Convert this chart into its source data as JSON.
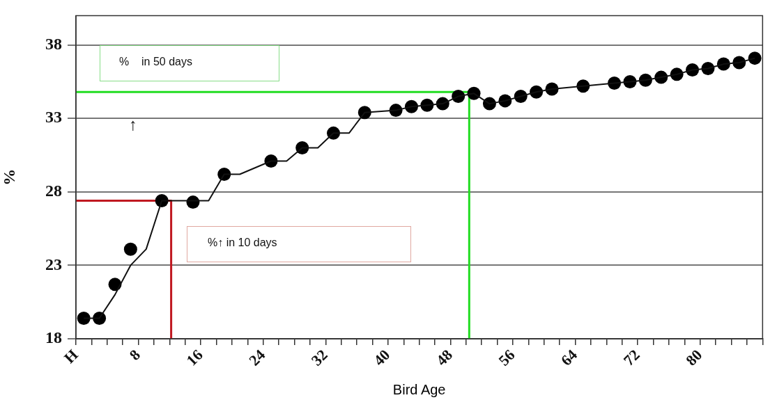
{
  "chart_data": {
    "type": "scatter",
    "xlabel": "Bird Age",
    "ylabel": "%",
    "xlim": [
      0,
      88
    ],
    "xticks": [
      {
        "value": 0,
        "label": "H"
      },
      {
        "value": 2,
        "label": null
      },
      {
        "value": 4,
        "label": null
      },
      {
        "value": 6,
        "label": null
      },
      8,
      {
        "value": 10,
        "label": null
      },
      {
        "value": 12,
        "label": null
      },
      {
        "value": 14,
        "label": null
      },
      16,
      {
        "value": 18,
        "label": null
      },
      {
        "value": 20,
        "label": null
      },
      {
        "value": 22,
        "label": null
      },
      24,
      {
        "value": 26,
        "label": null
      },
      {
        "value": 28,
        "label": null
      },
      {
        "value": 30,
        "label": null
      },
      32,
      {
        "value": 34,
        "label": null
      },
      {
        "value": 36,
        "label": null
      },
      {
        "value": 38,
        "label": null
      },
      40,
      {
        "value": 42,
        "label": null
      },
      {
        "value": 44,
        "label": null
      },
      {
        "value": 46,
        "label": null
      },
      48,
      {
        "value": 50,
        "label": null
      },
      {
        "value": 52,
        "label": null
      },
      {
        "value": 54,
        "label": null
      },
      56,
      {
        "value": 58,
        "label": null
      },
      {
        "value": 60,
        "label": null
      },
      {
        "value": 62,
        "label": null
      },
      64,
      {
        "value": 66,
        "label": null
      },
      {
        "value": 68,
        "label": null
      },
      {
        "value": 70,
        "label": null
      },
      72,
      {
        "value": 74,
        "label": null
      },
      {
        "value": 76,
        "label": null
      },
      {
        "value": 78,
        "label": null
      },
      80,
      {
        "value": 82,
        "label": null
      },
      {
        "value": 84,
        "label": null
      },
      {
        "value": 86,
        "label": null
      },
      {
        "value": 88,
        "label": null
      }
    ],
    "ylim": [
      18,
      40
    ],
    "yticks": [
      18,
      23,
      28,
      33,
      38
    ],
    "grid": "y",
    "legend": false,
    "series": [
      {
        "type": "line",
        "color": "#111111",
        "marker": "none",
        "line_style": "solid",
        "x": [
          1,
          3,
          5,
          7,
          9,
          11,
          17,
          19,
          21,
          25,
          27,
          29,
          31,
          33,
          35,
          37,
          41,
          43,
          45,
          47,
          49,
          51,
          53,
          55,
          57,
          59,
          61,
          65,
          69,
          71,
          73,
          75,
          77,
          79,
          81,
          83,
          85,
          87
        ],
        "values": [
          19.4,
          19.4,
          21.0,
          23.0,
          24.1,
          27.4,
          27.4,
          29.2,
          29.2,
          30.1,
          30.1,
          31.0,
          31.0,
          32.0,
          32.0,
          33.4,
          33.55,
          33.8,
          33.9,
          34.0,
          34.5,
          34.7,
          34.0,
          34.2,
          34.5,
          34.8,
          35.0,
          35.2,
          35.4,
          35.5,
          35.6,
          35.8,
          36.0,
          36.3,
          36.4,
          36.7,
          36.8,
          37.1
        ]
      },
      {
        "color": "#000000",
        "marker": "circle",
        "x": [
          1,
          3,
          5,
          7,
          11,
          15,
          19,
          25,
          29,
          33,
          37,
          41,
          43,
          45,
          47,
          49,
          51,
          53,
          55,
          57,
          59,
          61,
          65,
          69,
          71,
          73,
          75,
          77,
          79,
          81,
          83,
          85,
          87
        ],
        "values": [
          19.4,
          19.4,
          21.7,
          24.1,
          27.4,
          27.3,
          29.2,
          30.1,
          31.0,
          32.0,
          33.4,
          33.55,
          33.8,
          33.9,
          34.0,
          34.5,
          34.7,
          34.0,
          34.2,
          34.5,
          34.8,
          35.0,
          35.2,
          35.4,
          35.5,
          35.6,
          35.8,
          36.0,
          36.3,
          36.4,
          36.7,
          36.8,
          37.1
        ]
      },
      {
        "type": "line",
        "color": "#c01820",
        "marker": "none",
        "line_style": "solid",
        "x": [
          0,
          12.2,
          12.2
        ],
        "values": [
          27.4,
          27.4,
          18
        ]
      },
      {
        "type": "line",
        "color": "#22dd22",
        "marker": "none",
        "line_style": "solid",
        "x": [
          0,
          50.4,
          50.4
        ],
        "values": [
          34.8,
          34.8,
          18
        ]
      }
    ],
    "annotations": [
      "%    in 50 days",
      "↑",
      "%↑ in 10 days"
    ]
  }
}
